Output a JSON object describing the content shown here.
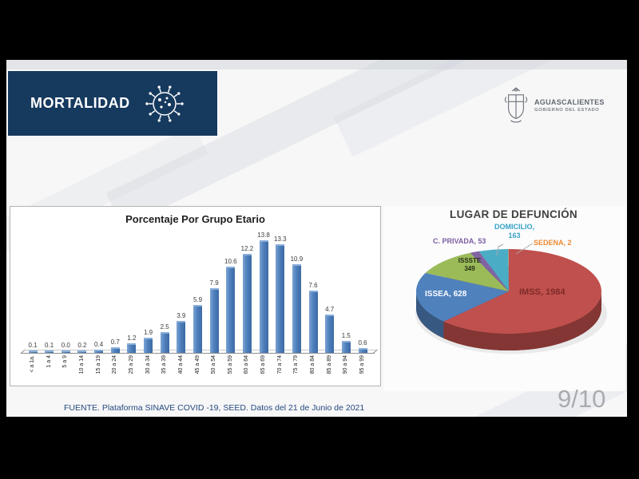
{
  "frame": {
    "page_indicator": "9/10"
  },
  "header": {
    "title": "MORTALIDAD"
  },
  "logo": {
    "name": "AGUASCALIENTES",
    "subtitle": "GOBIERNO DEL ESTADO"
  },
  "footer": {
    "source_text": "FUENTE. Plataforma SINAVE COVID -19, SEED. Datos del 21 de Junio de 2021"
  },
  "chart_data": [
    {
      "type": "bar",
      "title": "Porcentaje Por Grupo Etario",
      "categories": [
        "< a 1a.",
        "1 a 4",
        "5 a 9",
        "10 a 14",
        "15 a 19",
        "20 a 24",
        "25 a 29",
        "30 a 34",
        "35 a 39",
        "40 a 44",
        "45 a 49",
        "50 a 54",
        "55 a 59",
        "60 a 64",
        "65 a 69",
        "70 a 74",
        "75 a 79",
        "80 a 84",
        "85 a 89",
        "90 a 94",
        "95 a 99"
      ],
      "values": [
        0.1,
        0.1,
        0.0,
        0.2,
        0.4,
        0.7,
        1.2,
        1.9,
        2.5,
        3.9,
        5.9,
        7.9,
        10.6,
        12.2,
        13.8,
        13.3,
        10.9,
        7.6,
        4.7,
        1.5,
        0.6
      ],
      "xlabel": "",
      "ylabel": "",
      "ylim": [
        0,
        14.5
      ],
      "bar_color": "#4F81BD",
      "value_labels": true,
      "grid": false,
      "legend": false
    },
    {
      "type": "pie",
      "title": "LUGAR DE DEFUNCIÓN",
      "style": "3d",
      "legend_position": "data-labels",
      "slices": [
        {
          "label": "IMSS",
          "value": 1984,
          "color": "#C0504D",
          "label_color": "#7E2B28",
          "label_text": "IMSS, 1984"
        },
        {
          "label": "ISSEA",
          "value": 628,
          "color": "#4F81BD",
          "label_color": "#FFFFFF",
          "label_text": "ISSEA, 628"
        },
        {
          "label": "ISSSTE",
          "value": 349,
          "color": "#9BBB59",
          "label_color": "#232B16",
          "label_text": "ISSSTE 349",
          "label_text_lines": [
            "ISSSTE",
            "349"
          ]
        },
        {
          "label": "C. PRIVADA",
          "value": 53,
          "color": "#8064A2",
          "label_color": "#7A5EA0",
          "label_text": "C. PRIVADA, 53"
        },
        {
          "label": "DOMICILIO",
          "value": 163,
          "color": "#4BACC6",
          "label_color": "#35A2C6",
          "label_text": "DOMICILIO, 163",
          "label_text_lines": [
            "DOMICILIO,",
            "163"
          ]
        },
        {
          "label": "SEDENA",
          "value": 2,
          "color": "#F79646",
          "label_color": "#ED8A33",
          "label_text": "SEDENA, 2"
        }
      ]
    }
  ]
}
